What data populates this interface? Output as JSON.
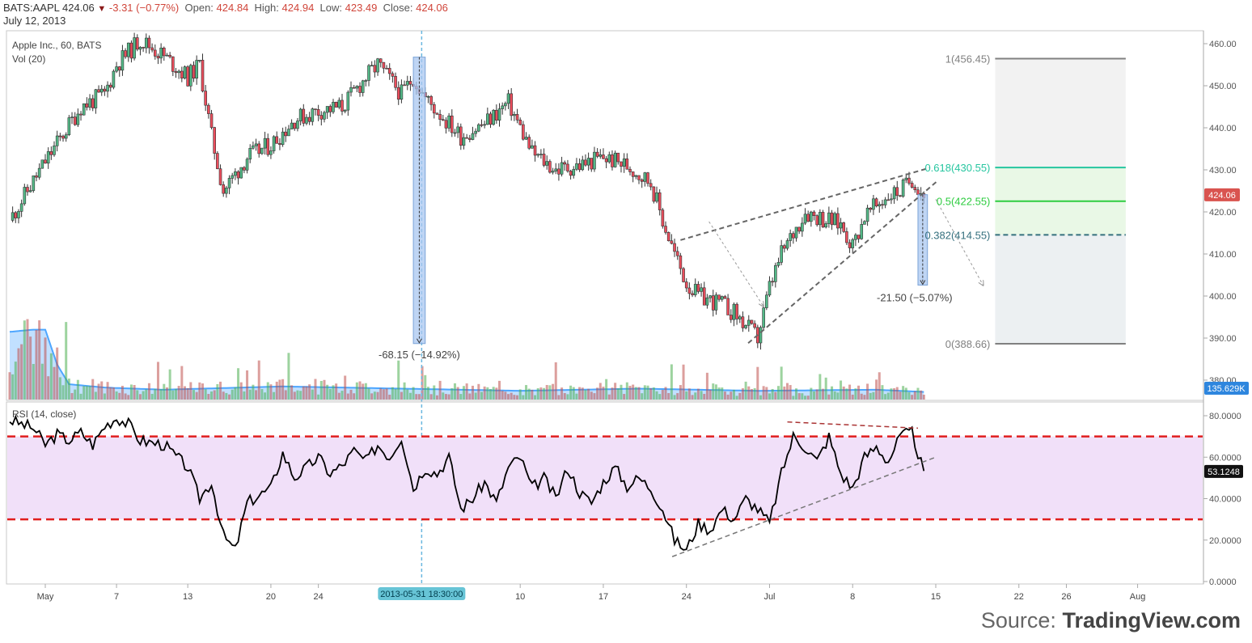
{
  "header": {
    "symbol": "BATS:AAPL",
    "last": "424.06",
    "change": "-3.31 (−0.77%)",
    "open_label": "Open:",
    "open": "424.84",
    "high_label": "High:",
    "high": "424.94",
    "low_label": "Low:",
    "low": "423.49",
    "close_label": "Close:",
    "close": "424.06",
    "date": "July 12, 2013"
  },
  "legend": {
    "main": "Apple Inc., 60, BATS",
    "vol": "Vol (20)",
    "rsi": "RSI (14, close)"
  },
  "source": {
    "prefix": "Source: ",
    "brand": "TradingView.com"
  },
  "colors": {
    "up": "#53b987",
    "down": "#eb4d5c",
    "vol_up": "#4caf50",
    "vol_down": "#c0504d",
    "vol_ma": "#4da6ff",
    "rsi_band": "#f1e0f9",
    "rsi_line": "#000000",
    "rsi_bound": "#e01e1e",
    "fib_hi": "#808080",
    "fib_618": "#26c6a0",
    "fib_05": "#2ecc40",
    "fib_382": "#35707e",
    "projection": "#aac7f0"
  },
  "chart_data": [
    {
      "type": "candlestick",
      "symbol": "BATS:AAPL",
      "interval": "60",
      "ylim": [
        376,
        462
      ],
      "y_ticks": [
        "460.00",
        "450.00",
        "440.00",
        "430.00",
        "420.00",
        "410.00",
        "400.00",
        "390.00",
        "380.00"
      ],
      "x_ticks": [
        "May",
        "7",
        "13",
        "20",
        "24",
        "10",
        "17",
        "24",
        "Jul",
        "8",
        "15",
        "22",
        "26",
        "Aug"
      ],
      "x_tick_days": [
        0,
        6,
        12,
        19,
        23,
        40,
        47,
        54,
        61,
        68,
        75,
        82,
        86,
        92
      ],
      "crosshair_label": "2013-05-31 18:30:00",
      "price_path_days": [
        -3,
        0,
        3,
        5,
        6,
        8,
        10,
        12,
        13,
        14,
        15,
        17,
        19,
        21,
        23,
        25,
        27,
        28,
        30,
        31,
        32,
        33,
        35,
        37,
        39,
        41,
        43,
        45,
        47,
        49,
        51,
        52,
        53,
        54,
        55,
        57,
        58,
        60,
        61,
        62,
        64,
        65,
        67,
        68,
        69,
        71,
        72,
        73,
        74
      ],
      "price_path": [
        418,
        432,
        445,
        448,
        455,
        461,
        457,
        452,
        455,
        438,
        425,
        433,
        436,
        442,
        444,
        445,
        452,
        455,
        448,
        452,
        447,
        444,
        438,
        441,
        446,
        434,
        430,
        431,
        433,
        431,
        427,
        418,
        410,
        403,
        400,
        398,
        396,
        390,
        402,
        410,
        420,
        419,
        417,
        412,
        419,
        424,
        425,
        428,
        424
      ],
      "last_price": 424.06,
      "last_price_label": "424.06",
      "volume_last_label": "135.629K",
      "volume_ylim": [
        0,
        4.3
      ],
      "volume_ma_path_days": [
        -3,
        -1,
        0,
        1,
        2,
        5,
        10,
        20,
        30,
        40,
        50,
        60,
        70,
        74
      ],
      "volume_ma_path": [
        3.1,
        3.2,
        3.2,
        1.6,
        0.7,
        0.55,
        0.45,
        0.6,
        0.5,
        0.4,
        0.5,
        0.4,
        0.45,
        0.35
      ],
      "measurements": [
        {
          "label": "-68.15 (−14.92%)",
          "day_start": 31,
          "day_end": 32,
          "from": 456.8,
          "to": 388.7
        },
        {
          "label": "-21.50 (−5.07%)",
          "day_start": 73.5,
          "day_end": 74.3,
          "from": 424.1,
          "to": 402.6
        }
      ],
      "fibonacci": [
        {
          "level": "1",
          "price": 456.45,
          "label": "1(456.45)"
        },
        {
          "level": "0.618",
          "price": 430.55,
          "label": "0.618(430.55)"
        },
        {
          "level": "0.5",
          "price": 422.55,
          "label": "0.5(422.55)"
        },
        {
          "level": "0.382",
          "price": 414.55,
          "label": "0.382(414.55)"
        },
        {
          "level": "0",
          "price": 388.66,
          "label": "0(388.66)"
        }
      ],
      "fib_zone_days": [
        80,
        91
      ],
      "trendlines": [
        {
          "style": "dashed",
          "from": [
            53.5,
            413.3
          ],
          "to": [
            74.5,
            430.5
          ]
        },
        {
          "style": "dashed",
          "from": [
            59.2,
            388.8
          ],
          "to": [
            75.2,
            427.5
          ]
        },
        {
          "style": "dashed-arrow",
          "from": [
            55.9,
            417.7
          ],
          "to": [
            60.5,
            397.5
          ]
        },
        {
          "style": "dashed-arrow",
          "from": [
            75,
            423
          ],
          "to": [
            79,
            402.5
          ]
        }
      ]
    },
    {
      "type": "line",
      "name": "RSI (14, close)",
      "ylim": [
        0,
        90
      ],
      "y_ticks": [
        "80.0000",
        "60.0000",
        "40.0000",
        "20.0000",
        "0.0000"
      ],
      "upper_bound": 70,
      "lower_bound": 30,
      "last_value_label": "53.1248",
      "x_days": [
        -3,
        -2,
        -1,
        0,
        1,
        2,
        3,
        4,
        5,
        6,
        7,
        8,
        10,
        12,
        13,
        14,
        15,
        16,
        17,
        19,
        20,
        21,
        22,
        23,
        24,
        25,
        26,
        27,
        28,
        29,
        30,
        31,
        32,
        33,
        34,
        35,
        36,
        37,
        38,
        39,
        40,
        41,
        42,
        43,
        44,
        45,
        46,
        47,
        48,
        49,
        50,
        51,
        52,
        53,
        54,
        55,
        56,
        57,
        58,
        59,
        60,
        61,
        62,
        63,
        64,
        65,
        66,
        67,
        68,
        69,
        70,
        71,
        72,
        73,
        74
      ],
      "values": [
        78,
        76,
        74,
        66,
        71,
        68,
        72,
        66,
        75,
        79,
        76,
        68,
        66,
        55,
        40,
        48,
        22,
        15,
        38,
        45,
        62,
        50,
        55,
        60,
        52,
        56,
        63,
        58,
        66,
        60,
        70,
        45,
        55,
        52,
        60,
        35,
        40,
        48,
        38,
        55,
        60,
        45,
        50,
        40,
        55,
        43,
        38,
        48,
        55,
        46,
        50,
        45,
        35,
        20,
        15,
        28,
        25,
        35,
        30,
        40,
        35,
        28,
        52,
        70,
        65,
        58,
        70,
        52,
        45,
        60,
        65,
        58,
        70,
        72,
        52
      ],
      "trendlines": [
        {
          "style": "dashed",
          "color": "grey",
          "from": [
            52.8,
            12
          ],
          "to": [
            75,
            60
          ]
        },
        {
          "style": "dashed",
          "color": "darkred",
          "from": [
            62.5,
            77
          ],
          "to": [
            73.5,
            74
          ]
        }
      ]
    }
  ]
}
